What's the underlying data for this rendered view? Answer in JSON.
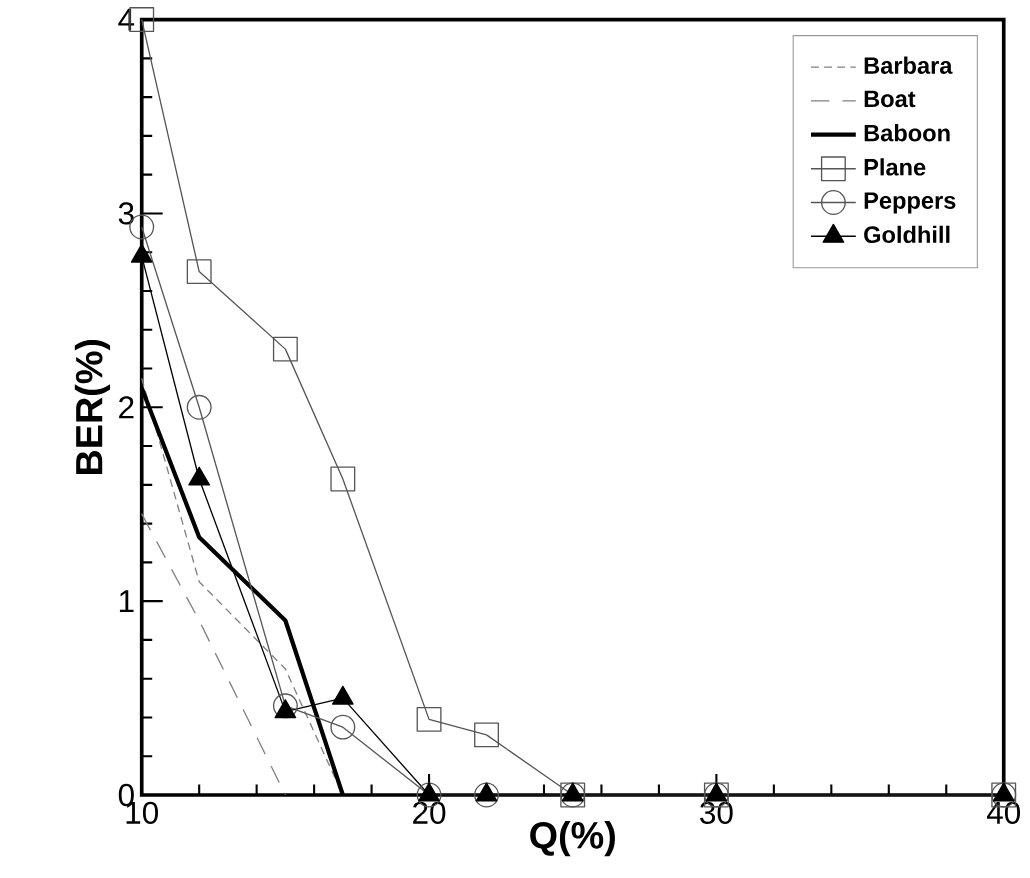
{
  "chart_data": {
    "type": "line",
    "xlabel": "Q(%)",
    "ylabel": "BER(%)",
    "x": [
      10,
      12,
      15,
      17,
      20,
      22,
      25,
      30,
      40
    ],
    "xlim": [
      10,
      40
    ],
    "ylim": [
      0,
      4
    ],
    "xticks": [
      10,
      20,
      30,
      40
    ],
    "yticks": [
      0,
      1,
      2,
      3,
      4
    ],
    "grid": false,
    "legend": "top right",
    "series": [
      {
        "name": "Barbara",
        "color": "#808080",
        "line_style": "dotted",
        "marker": "none",
        "x": [
          10,
          12,
          15,
          17
        ],
        "values": [
          2.15,
          1.1,
          0.65,
          0
        ]
      },
      {
        "name": "Boat",
        "color": "#808080",
        "line_style": "dashed",
        "marker": "none",
        "x": [
          10,
          12,
          15
        ],
        "values": [
          1.45,
          0.9,
          0
        ]
      },
      {
        "name": "Baboon",
        "color": "#000000",
        "line_style": "solid",
        "marker": "none",
        "x": [
          10,
          12,
          15,
          17
        ],
        "values": [
          2.1,
          1.33,
          0.9,
          0
        ]
      },
      {
        "name": "Plane",
        "color": "#555555",
        "line_style": "solid",
        "marker": "square",
        "values": [
          4.0,
          2.7,
          2.3,
          1.63,
          0.39,
          0.31,
          0,
          0,
          0
        ]
      },
      {
        "name": "Peppers",
        "color": "#555555",
        "line_style": "solid",
        "marker": "circle",
        "values": [
          2.93,
          2.0,
          0.46,
          0.35,
          0,
          0,
          0,
          0,
          0
        ]
      },
      {
        "name": "Goldhill",
        "color": "#000000",
        "line_style": "solid",
        "marker": "triangle",
        "values": [
          2.78,
          1.63,
          0.43,
          0.5,
          0,
          0,
          0,
          0,
          0
        ]
      }
    ]
  }
}
